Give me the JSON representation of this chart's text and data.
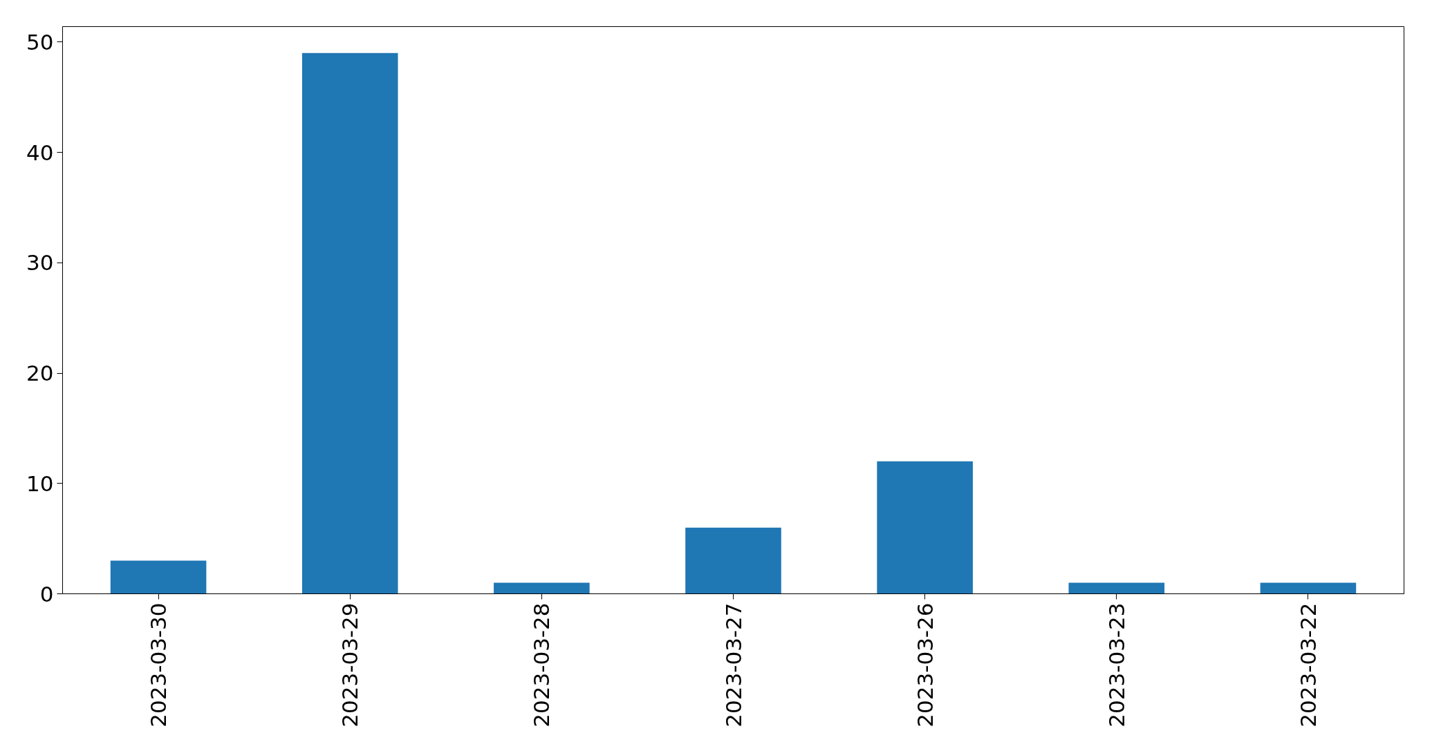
{
  "chart_data": {
    "type": "bar",
    "categories": [
      "2023-03-30",
      "2023-03-29",
      "2023-03-28",
      "2023-03-27",
      "2023-03-26",
      "2023-03-23",
      "2023-03-22"
    ],
    "values": [
      3,
      49,
      1,
      6,
      12,
      1,
      1
    ],
    "color": "#1f77b4",
    "ylim": [
      0,
      51.4
    ],
    "yticks": [
      0,
      10,
      20,
      30,
      40,
      50
    ]
  }
}
